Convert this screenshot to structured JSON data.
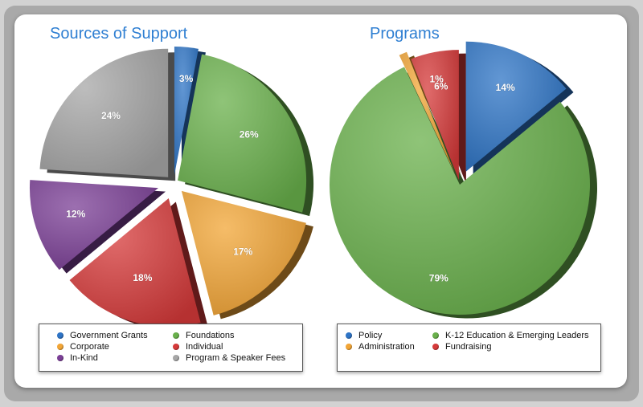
{
  "colors": {
    "blue": "#2e74c6",
    "green": "#69b04b",
    "orange": "#f2a536",
    "red": "#d63a3a",
    "purple": "#7b3f96",
    "gray": "#a7a7a7"
  },
  "chart_data": [
    {
      "type": "pie",
      "title": "Sources of Support",
      "exploded": true,
      "slices": [
        {
          "label": "Government Grants",
          "value": 3,
          "display": "3%",
          "color": "#2e74c6"
        },
        {
          "label": "Foundations",
          "value": 26,
          "display": "26%",
          "color": "#69b04b"
        },
        {
          "label": "Corporate",
          "value": 17,
          "display": "17%",
          "color": "#f2a536"
        },
        {
          "label": "Individual",
          "value": 18,
          "display": "18%",
          "color": "#d63a3a"
        },
        {
          "label": "In-Kind",
          "value": 12,
          "display": "12%",
          "color": "#7b3f96"
        },
        {
          "label": "Program & Speaker Fees",
          "value": 24,
          "display": "24%",
          "color": "#a7a7a7"
        }
      ],
      "legend": [
        {
          "label": "Government Grants",
          "color": "#2e74c6"
        },
        {
          "label": "Foundations",
          "color": "#69b04b"
        },
        {
          "label": "Corporate",
          "color": "#f2a536"
        },
        {
          "label": "Individual",
          "color": "#d63a3a"
        },
        {
          "label": "In-Kind",
          "color": "#7b3f96"
        },
        {
          "label": "Program & Speaker Fees",
          "color": "#a7a7a7"
        }
      ]
    },
    {
      "type": "pie",
      "title": "Programs",
      "exploded": true,
      "slices": [
        {
          "label": "Policy",
          "value": 14,
          "display": "14%",
          "color": "#2e74c6"
        },
        {
          "label": "K-12 Education & Emerging Leaders",
          "value": 79,
          "display": "79%",
          "color": "#69b04b"
        },
        {
          "label": "Administration",
          "value": 1,
          "display": "1%",
          "color": "#f2a536"
        },
        {
          "label": "Fundraising",
          "value": 6,
          "display": "6%",
          "color": "#d63a3a"
        }
      ],
      "legend": [
        {
          "label": "Policy",
          "color": "#2e74c6"
        },
        {
          "label": "K-12 Education & Emerging Leaders",
          "color": "#69b04b"
        },
        {
          "label": "Administration",
          "color": "#f2a536"
        },
        {
          "label": "Fundraising",
          "color": "#d63a3a"
        }
      ]
    }
  ]
}
